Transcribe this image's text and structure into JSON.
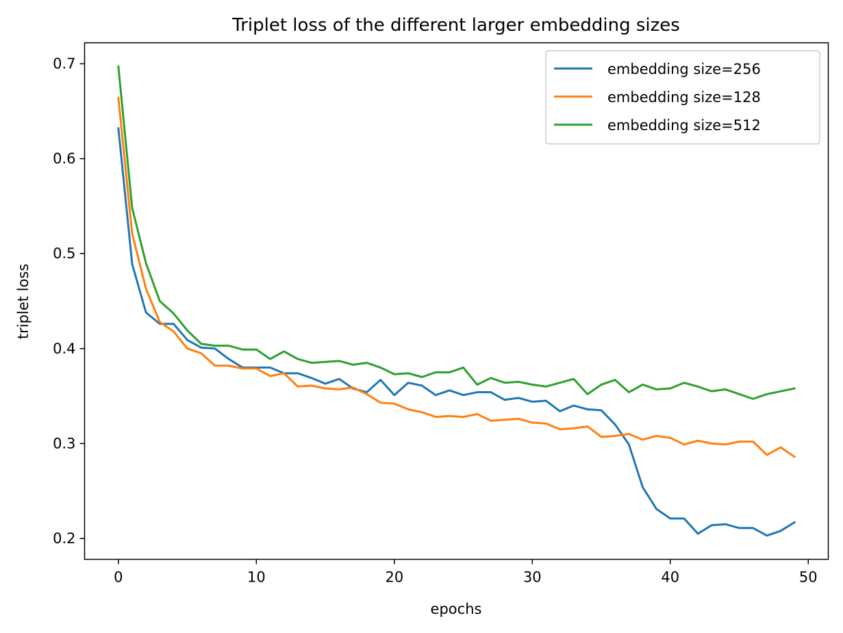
{
  "chart_data": {
    "type": "line",
    "title": "Triplet loss of the different larger embedding sizes",
    "xlabel": "epochs",
    "ylabel": "triplet loss",
    "xlim": [
      -2.45,
      51.45
    ],
    "ylim": [
      0.178,
      0.722
    ],
    "xticks": [
      0,
      10,
      20,
      30,
      40,
      50
    ],
    "yticks": [
      0.2,
      0.3,
      0.4,
      0.5,
      0.6,
      0.7
    ],
    "ytick_labels": [
      "0.2",
      "0.3",
      "0.4",
      "0.5",
      "0.6",
      "0.7"
    ],
    "grid": false,
    "legend_position": "top-right",
    "x": [
      0,
      1,
      2,
      3,
      4,
      5,
      6,
      7,
      8,
      9,
      10,
      11,
      12,
      13,
      14,
      15,
      16,
      17,
      18,
      19,
      20,
      21,
      22,
      23,
      24,
      25,
      26,
      27,
      28,
      29,
      30,
      31,
      32,
      33,
      34,
      35,
      36,
      37,
      38,
      39,
      40,
      41,
      42,
      43,
      44,
      45,
      46,
      47,
      48,
      49
    ],
    "series": [
      {
        "name": "embedding size=256",
        "color": "#1f77b4",
        "values": [
          0.632,
          0.489,
          0.438,
          0.426,
          0.426,
          0.409,
          0.401,
          0.4,
          0.389,
          0.38,
          0.38,
          0.38,
          0.374,
          0.374,
          0.369,
          0.363,
          0.368,
          0.358,
          0.354,
          0.367,
          0.351,
          0.364,
          0.361,
          0.351,
          0.356,
          0.351,
          0.354,
          0.354,
          0.346,
          0.348,
          0.344,
          0.345,
          0.334,
          0.34,
          0.336,
          0.335,
          0.32,
          0.299,
          0.254,
          0.231,
          0.221,
          0.221,
          0.205,
          0.214,
          0.215,
          0.211,
          0.211,
          0.203,
          0.208,
          0.217
        ]
      },
      {
        "name": "embedding size=128",
        "color": "#ff7f0e",
        "values": [
          0.664,
          0.521,
          0.463,
          0.428,
          0.418,
          0.4,
          0.395,
          0.382,
          0.382,
          0.379,
          0.379,
          0.371,
          0.374,
          0.36,
          0.361,
          0.358,
          0.357,
          0.359,
          0.352,
          0.343,
          0.342,
          0.336,
          0.333,
          0.328,
          0.329,
          0.328,
          0.331,
          0.324,
          0.325,
          0.326,
          0.322,
          0.321,
          0.315,
          0.316,
          0.318,
          0.307,
          0.308,
          0.31,
          0.304,
          0.308,
          0.306,
          0.299,
          0.303,
          0.3,
          0.299,
          0.302,
          0.302,
          0.288,
          0.296,
          0.286
        ]
      },
      {
        "name": "embedding size=512",
        "color": "#2ca02c",
        "values": [
          0.697,
          0.548,
          0.49,
          0.45,
          0.437,
          0.419,
          0.405,
          0.403,
          0.403,
          0.399,
          0.399,
          0.389,
          0.397,
          0.389,
          0.385,
          0.386,
          0.387,
          0.383,
          0.385,
          0.38,
          0.373,
          0.374,
          0.37,
          0.375,
          0.375,
          0.38,
          0.362,
          0.369,
          0.364,
          0.365,
          0.362,
          0.36,
          0.364,
          0.368,
          0.352,
          0.362,
          0.367,
          0.354,
          0.362,
          0.357,
          0.358,
          0.364,
          0.36,
          0.355,
          0.357,
          0.352,
          0.347,
          0.352,
          0.355,
          0.358
        ]
      }
    ]
  }
}
